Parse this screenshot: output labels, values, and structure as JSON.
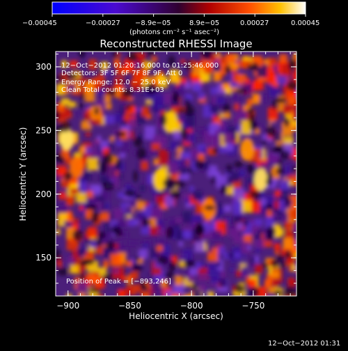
{
  "colorbar": {
    "min": -0.00045,
    "max": 0.00045,
    "tick_labels": [
      "−0.00045",
      "−0.00027",
      "−8.9e−05",
      "8.9e−05",
      "0.00027",
      "0.00045"
    ],
    "units_text": "(photons cm⁻² s⁻¹ asec⁻²)"
  },
  "title": "Reconstructed RHESSI Image",
  "annotations": {
    "time_range": "12−Oct−2012 01:20:16.000 to 01:25:46.000",
    "detectors": "Detectors: 3F 5F 6F 7F 8F 9F, Att 0",
    "energy": "Energy Range: 12.0 − 25.0 keV",
    "clean": "Clean     Total counts: 8.31E+03",
    "peak": "Position of Peak = [−893,246]"
  },
  "axes": {
    "xlabel": "Heliocentric X (arcsec)",
    "ylabel": "Heliocentric Y (arcsec)",
    "xlim": [
      -910,
      -715
    ],
    "ylim": [
      120,
      312
    ],
    "x_ticks": [
      {
        "value": -900,
        "label": "−900"
      },
      {
        "value": -850,
        "label": "−850"
      },
      {
        "value": -800,
        "label": "−800"
      },
      {
        "value": -750,
        "label": "−750"
      }
    ],
    "y_ticks": [
      {
        "value": 150,
        "label": "150"
      },
      {
        "value": 200,
        "label": "200"
      },
      {
        "value": 250,
        "label": "250"
      },
      {
        "value": 300,
        "label": "300"
      }
    ]
  },
  "footer": {
    "timestamp": "12−Oct−2012 01:31"
  },
  "colors": {
    "colormap": [
      "#000000",
      "#3a0b9e",
      "#6a2ad0",
      "#8c4bd8",
      "#5a1a5a",
      "#b01010",
      "#ff3000",
      "#ff8000",
      "#ffd000",
      "#ffffff"
    ]
  }
}
